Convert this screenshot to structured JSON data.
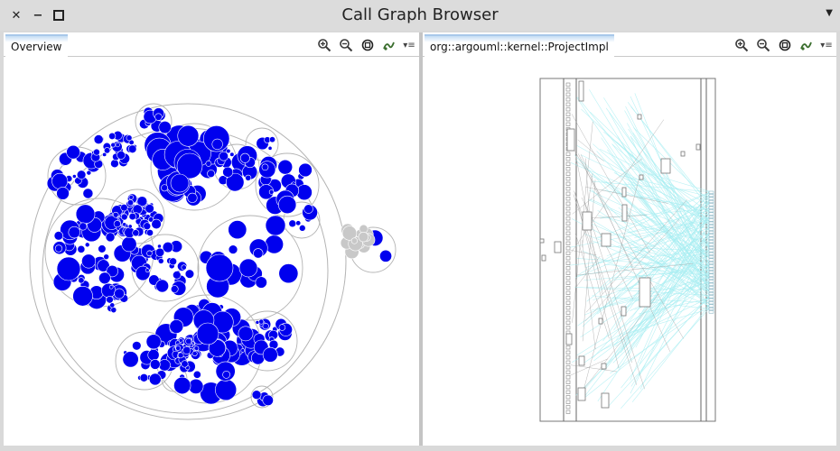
{
  "window": {
    "title": "Call Graph Browser",
    "close_icon": "close-icon",
    "minimize_icon": "minimize-icon",
    "maximize_icon": "maximize-icon",
    "menu_icon": "chevron-down-icon"
  },
  "left_pane": {
    "tab_label": "Overview",
    "toolbar": [
      "zoom-in-icon",
      "zoom-out-icon",
      "zoom-reset-icon",
      "settings-icon",
      "menu-icon"
    ]
  },
  "right_pane": {
    "tab_label": "org::argouml::kernel::ProjectImpl",
    "toolbar": [
      "zoom-in-icon",
      "zoom-out-icon",
      "zoom-reset-icon",
      "settings-icon",
      "menu-icon"
    ]
  },
  "colors": {
    "node_fill": "#0000ee",
    "node_inactive": "#c8c8c8",
    "container_stroke": "#b4b4b4",
    "edge_color": "#a8eef2",
    "tab_accent": "#a8c8ea",
    "zoom_icon": "#3b6e2e"
  }
}
